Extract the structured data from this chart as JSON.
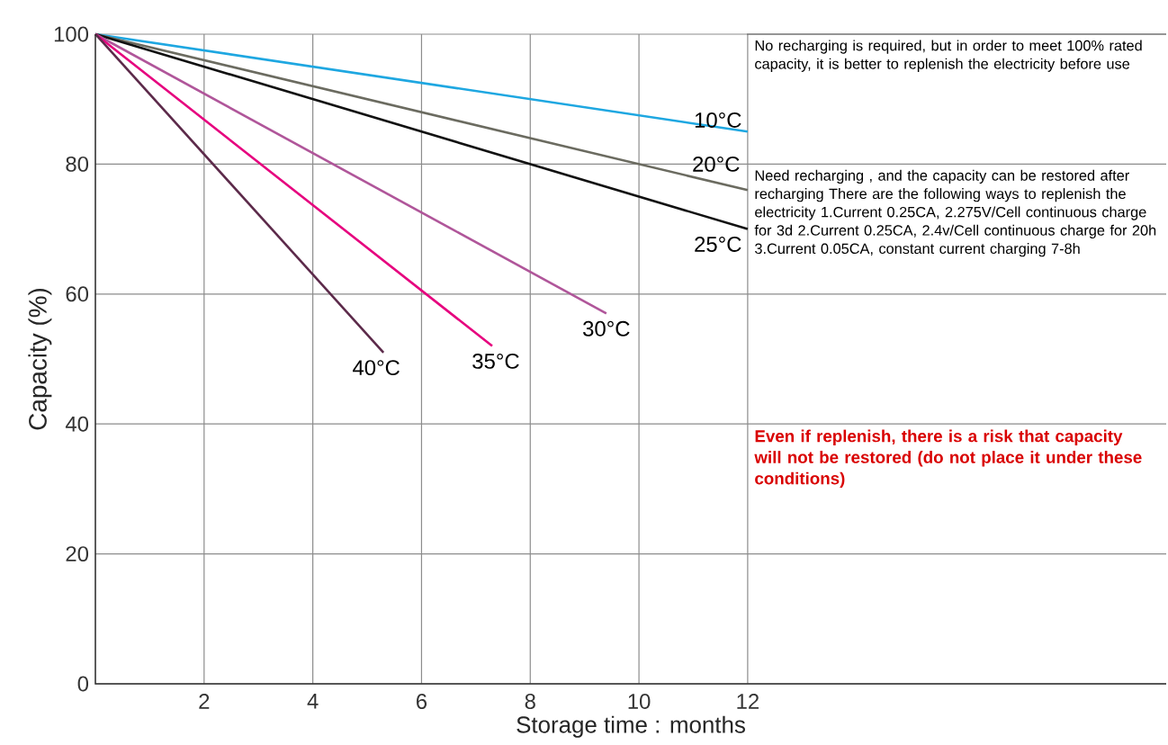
{
  "chart_data": {
    "type": "line",
    "xlabel": "Storage time : months",
    "ylabel": "Capacity (%)",
    "xlim": [
      0,
      19.7
    ],
    "ylim": [
      0,
      100
    ],
    "xticks": [
      2,
      4,
      6,
      8,
      10,
      12
    ],
    "yticks": [
      0,
      20,
      40,
      60,
      80,
      100
    ],
    "grid": true,
    "marker": "none",
    "line_style": "solid",
    "series": [
      {
        "name": "10°C",
        "color": "#1ea7e1",
        "x": [
          0,
          12
        ],
        "values": [
          100,
          85
        ]
      },
      {
        "name": "20°C",
        "color": "#6b6b60",
        "x": [
          0,
          12
        ],
        "values": [
          100,
          76
        ]
      },
      {
        "name": "25°C",
        "color": "#111111",
        "x": [
          0,
          12
        ],
        "values": [
          100,
          70
        ]
      },
      {
        "name": "30°C",
        "color": "#b0569a",
        "x": [
          0,
          9.4
        ],
        "values": [
          100,
          57
        ]
      },
      {
        "name": "35°C",
        "color": "#e6007e",
        "x": [
          0,
          7.3
        ],
        "values": [
          100,
          52
        ]
      },
      {
        "name": "40°C",
        "color": "#5c2a4a",
        "x": [
          0,
          5.3
        ],
        "values": [
          100,
          51
        ]
      }
    ],
    "annotations": [
      "No recharging is required, but in order to meet 100% rated capacity, it is better to replenish the electricity before use",
      "Need recharging , and the capacity can be restored after recharging There are the following ways to replenish the electricity 1.Current 0.25CA, 2.275V/Cell continuous charge for 3d 2.Current 0.25CA, 2.4v/Cell continuous charge for 20h 3.Current 0.05CA, constant current charging 7-8h",
      "Even if replenish, there is a risk that capacity will not be restored (do not place it under these conditions)"
    ]
  }
}
